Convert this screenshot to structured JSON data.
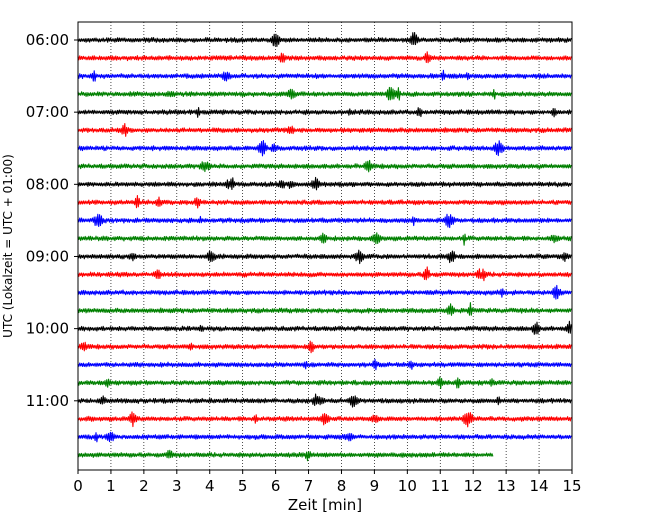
{
  "chart_data": {
    "type": "line",
    "xlabel": "Zeit  [min]",
    "ylabel": "UTC (Lokalzeit = UTC + 01:00)",
    "xlim": [
      0,
      15
    ],
    "xticks": [
      "0",
      "1",
      "2",
      "3",
      "4",
      "5",
      "6",
      "7",
      "8",
      "9",
      "10",
      "11",
      "12",
      "13",
      "14",
      "15"
    ],
    "yticks": [
      "06:00",
      "07:00",
      "08:00",
      "09:00",
      "10:00",
      "11:00"
    ],
    "grid": "vertical dotted",
    "trace_colors": [
      "#000000",
      "#ff0000",
      "#0000ff",
      "#008000"
    ],
    "series": [
      {
        "start": "06:00",
        "x_end": 15
      },
      {
        "start": "06:15",
        "x_end": 15
      },
      {
        "start": "06:30",
        "x_end": 15
      },
      {
        "start": "06:45",
        "x_end": 15
      },
      {
        "start": "07:00",
        "x_end": 15
      },
      {
        "start": "07:15",
        "x_end": 15
      },
      {
        "start": "07:30",
        "x_end": 15
      },
      {
        "start": "07:45",
        "x_end": 15
      },
      {
        "start": "08:00",
        "x_end": 15
      },
      {
        "start": "08:15",
        "x_end": 15
      },
      {
        "start": "08:30",
        "x_end": 15
      },
      {
        "start": "08:45",
        "x_end": 15
      },
      {
        "start": "09:00",
        "x_end": 15
      },
      {
        "start": "09:15",
        "x_end": 15
      },
      {
        "start": "09:30",
        "x_end": 15
      },
      {
        "start": "09:45",
        "x_end": 15
      },
      {
        "start": "10:00",
        "x_end": 15
      },
      {
        "start": "10:15",
        "x_end": 15
      },
      {
        "start": "10:30",
        "x_end": 15
      },
      {
        "start": "10:45",
        "x_end": 15
      },
      {
        "start": "11:00",
        "x_end": 15
      },
      {
        "start": "11:15",
        "x_end": 15
      },
      {
        "start": "11:30",
        "x_end": 15
      },
      {
        "start": "11:45",
        "x_end": 12.6
      }
    ]
  }
}
